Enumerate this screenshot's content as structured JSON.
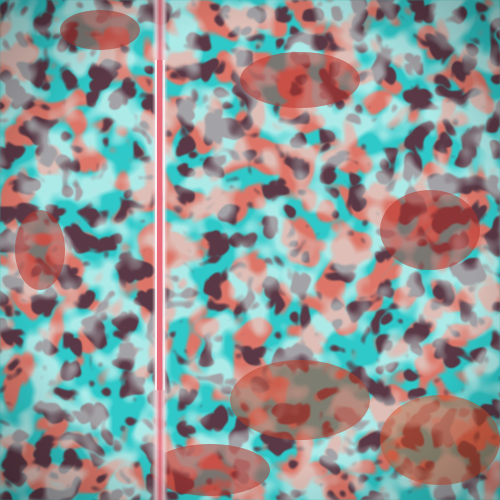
{
  "image": {
    "description_free": true,
    "palette": {
      "cyan": "#2fc9c9",
      "cyan_light": "#6fe6e0",
      "teal_dark": "#0f4a50",
      "red": "#b8322a",
      "red_dark": "#6a1414",
      "orange": "#d9502c",
      "near_black": "#1a0a10",
      "streak_pink": "#e86a7a",
      "streak_white": "#f2d8dc"
    },
    "texture": {
      "type": "turbulent-blob-pattern",
      "seed": 7,
      "base_frequency": 0.018,
      "octaves": 3
    },
    "streak": {
      "orientation": "vertical",
      "present": true
    }
  }
}
